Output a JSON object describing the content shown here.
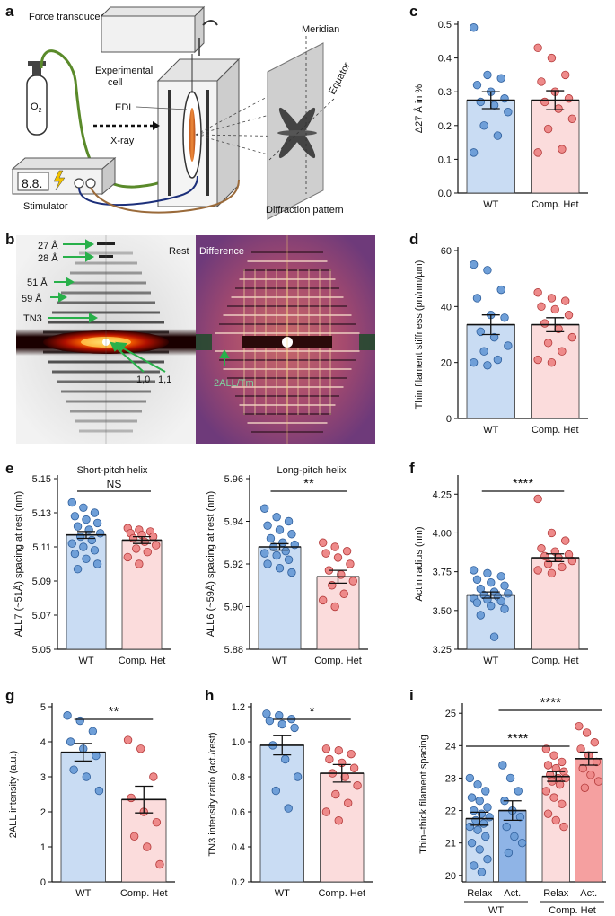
{
  "panels": {
    "a": {
      "label": "a",
      "force_transducer": "Force transducer",
      "experimental_cell_1": "Experimental",
      "experimental_cell_2": "cell",
      "o2": "O",
      "o2_sub": "2",
      "edl": "EDL",
      "xray": "X-ray",
      "stimulator": "Stimulator",
      "display_digits": "8.8.",
      "meridian": "Meridian",
      "equator": "Equator",
      "diffraction_pattern": "Diffraction pattern"
    },
    "b": {
      "label": "b",
      "rest": "Rest",
      "difference": "Difference",
      "reflections": [
        "27 Å",
        "28 Å",
        "51 Å",
        "59 Å",
        "TN3",
        "1,0",
        "1,1"
      ],
      "difference_marker": "2ALL/Tm"
    },
    "c": {
      "label": "c"
    },
    "d": {
      "label": "d"
    },
    "e": {
      "label": "e",
      "left_title": "Short-pitch helix",
      "right_title": "Long-pitch helix"
    },
    "f": {
      "label": "f"
    },
    "g": {
      "label": "g"
    },
    "h": {
      "label": "h"
    },
    "i": {
      "label": "i"
    }
  },
  "colors": {
    "wt_fill": "#c9dcf3",
    "wt_dot": "#6f9fd8",
    "wt_edge": "#2f5f9c",
    "het_fill": "#fbdcdc",
    "het_dot": "#ee8a8a",
    "het_edge": "#b33a3a",
    "act_wt_fill": "#8fb4e6",
    "act_het_fill": "#f5a0a0"
  },
  "chart_data": [
    {
      "id": "c",
      "type": "bar",
      "categories": [
        "WT",
        "Comp. Het"
      ],
      "values": [
        0.275,
        0.275
      ],
      "sem": [
        0.025,
        0.028
      ],
      "points": [
        [
          0.49,
          0.35,
          0.34,
          0.32,
          0.3,
          0.28,
          0.27,
          0.26,
          0.24,
          0.2,
          0.17,
          0.12
        ],
        [
          0.43,
          0.4,
          0.35,
          0.33,
          0.3,
          0.28,
          0.27,
          0.25,
          0.22,
          0.19,
          0.13,
          0.12
        ]
      ],
      "ylabel": "Δ27 Å in %",
      "ylim": [
        0,
        0.5
      ],
      "yticks": [
        0.0,
        0.1,
        0.2,
        0.3,
        0.4,
        0.5
      ],
      "tick_decimals": 1,
      "significance": []
    },
    {
      "id": "d",
      "type": "bar",
      "categories": [
        "WT",
        "Comp. Het"
      ],
      "values": [
        33.5,
        33.5
      ],
      "sem": [
        3.5,
        2.5
      ],
      "points": [
        [
          55,
          53,
          46,
          43,
          37,
          36,
          31,
          29,
          26,
          24,
          21,
          20,
          19
        ],
        [
          45,
          43,
          42,
          40,
          39,
          37,
          34,
          32,
          29,
          27,
          24,
          21,
          20
        ]
      ],
      "ylabel": "Thin filament stiffness (pn/nm/µm)",
      "ylim": [
        0,
        60
      ],
      "yticks": [
        0,
        20,
        40,
        60
      ],
      "tick_decimals": 0,
      "significance": []
    },
    {
      "id": "e1",
      "type": "bar",
      "categories": [
        "WT",
        "Comp. Het"
      ],
      "values": [
        5.117,
        5.114
      ],
      "sem": [
        0.002,
        0.002
      ],
      "points": [
        [
          5.136,
          5.133,
          5.13,
          5.128,
          5.126,
          5.124,
          5.122,
          5.12,
          5.118,
          5.116,
          5.114,
          5.112,
          5.11,
          5.108,
          5.106,
          5.103,
          5.1,
          5.097
        ],
        [
          5.121,
          5.12,
          5.119,
          5.118,
          5.117,
          5.116,
          5.115,
          5.113,
          5.111,
          5.109,
          5.107,
          5.104,
          5.1
        ]
      ],
      "ylabel": "ALL7 (~51Å) spacing at rest (nm)",
      "ylim": [
        5.05,
        5.15
      ],
      "yticks": [
        5.05,
        5.07,
        5.09,
        5.11,
        5.13,
        5.15
      ],
      "tick_decimals": 2,
      "significance": [
        {
          "text": "NS",
          "between": [
            0,
            1
          ]
        }
      ]
    },
    {
      "id": "e2",
      "type": "bar",
      "categories": [
        "WT",
        "Comp. Het"
      ],
      "values": [
        5.928,
        5.914
      ],
      "sem": [
        0.0015,
        0.003
      ],
      "points": [
        [
          5.946,
          5.942,
          5.94,
          5.938,
          5.936,
          5.934,
          5.932,
          5.93,
          5.929,
          5.928,
          5.926,
          5.925,
          5.924,
          5.922,
          5.92,
          5.918,
          5.916
        ],
        [
          5.93,
          5.928,
          5.926,
          5.925,
          5.923,
          5.92,
          5.917,
          5.915,
          5.912,
          5.91,
          5.906,
          5.903,
          5.9
        ]
      ],
      "ylabel": "ALL6 (~59Å) spacing at rest (nm)",
      "ylim": [
        5.88,
        5.96
      ],
      "yticks": [
        5.88,
        5.9,
        5.92,
        5.94,
        5.96
      ],
      "tick_decimals": 2,
      "significance": [
        {
          "text": "**",
          "between": [
            0,
            1
          ]
        }
      ]
    },
    {
      "id": "f",
      "type": "bar",
      "categories": [
        "WT",
        "Comp. Het"
      ],
      "values": [
        3.6,
        3.84
      ],
      "sem": [
        0.02,
        0.025
      ],
      "points": [
        [
          3.76,
          3.74,
          3.72,
          3.7,
          3.68,
          3.66,
          3.64,
          3.62,
          3.61,
          3.6,
          3.59,
          3.58,
          3.57,
          3.56,
          3.55,
          3.53,
          3.51,
          3.47,
          3.33
        ],
        [
          4.22,
          4.0,
          3.95,
          3.9,
          3.88,
          3.86,
          3.85,
          3.84,
          3.82,
          3.8,
          3.78,
          3.76,
          3.74
        ]
      ],
      "ylabel": "Actin radius (nm)",
      "ylim": [
        3.25,
        4.35
      ],
      "yticks": [
        3.25,
        3.5,
        3.75,
        4.0,
        4.25
      ],
      "tick_decimals": 2,
      "significance": [
        {
          "text": "****",
          "between": [
            0,
            1
          ]
        }
      ]
    },
    {
      "id": "g",
      "type": "bar",
      "categories": [
        "WT",
        "Comp. Het"
      ],
      "values": [
        3.7,
        2.35
      ],
      "sem": [
        0.25,
        0.38
      ],
      "points": [
        [
          4.75,
          4.6,
          4.3,
          4.0,
          3.8,
          3.6,
          3.2,
          3.0,
          2.6
        ],
        [
          4.05,
          3.8,
          3.0,
          2.4,
          2.0,
          1.7,
          1.3,
          1.0,
          0.5
        ]
      ],
      "ylabel": "2ALL intensity (a.u.)",
      "ylim": [
        0,
        5
      ],
      "yticks": [
        0,
        1,
        2,
        3,
        4,
        5
      ],
      "tick_decimals": 0,
      "significance": [
        {
          "text": "**",
          "between": [
            0,
            1
          ]
        }
      ]
    },
    {
      "id": "h",
      "type": "bar",
      "categories": [
        "WT",
        "Comp. Het"
      ],
      "values": [
        0.98,
        0.82
      ],
      "sem": [
        0.055,
        0.05
      ],
      "points": [
        [
          1.16,
          1.15,
          1.13,
          1.12,
          1.1,
          1.08,
          0.98,
          0.9,
          0.8,
          0.72,
          0.62
        ],
        [
          0.96,
          0.95,
          0.93,
          0.9,
          0.88,
          0.85,
          0.82,
          0.8,
          0.75,
          0.7,
          0.65,
          0.6,
          0.55
        ]
      ],
      "ylabel": "TN3 intensity ratio (act./rest)",
      "ylim": [
        0.2,
        1.2
      ],
      "yticks": [
        0.2,
        0.4,
        0.6,
        0.8,
        1.0,
        1.2
      ],
      "tick_decimals": 1,
      "significance": [
        {
          "text": "*",
          "between": [
            0,
            1
          ]
        }
      ]
    },
    {
      "id": "i",
      "type": "bar",
      "categories": [
        "Relax",
        "Act.",
        "Relax",
        "Act."
      ],
      "groups": [
        {
          "label": "WT",
          "span": [
            0,
            1
          ]
        },
        {
          "label": "Comp. Het",
          "span": [
            2,
            3
          ]
        }
      ],
      "values": [
        21.75,
        22.0,
        23.05,
        23.6
      ],
      "sem": [
        0.2,
        0.3,
        0.15,
        0.2
      ],
      "points": [
        [
          23.0,
          22.8,
          22.6,
          22.4,
          22.3,
          22.1,
          22.0,
          21.9,
          21.8,
          21.7,
          21.6,
          21.5,
          21.4,
          21.2,
          21.0,
          20.8,
          20.5,
          20.3,
          20.1
        ],
        [
          23.4,
          23.0,
          22.6,
          22.3,
          22.0,
          21.8,
          21.5,
          21.2,
          21.0,
          20.7
        ],
        [
          23.9,
          23.7,
          23.5,
          23.4,
          23.3,
          23.2,
          23.1,
          23.0,
          23.0,
          22.9,
          22.8,
          22.6,
          22.4,
          22.2,
          21.9,
          21.7,
          21.5
        ],
        [
          24.6,
          24.4,
          24.1,
          23.9,
          23.7,
          23.5,
          23.3,
          23.1,
          22.9,
          22.7
        ]
      ],
      "ylabel": "Thin–thick filament spacing",
      "ylim": [
        19.8,
        25.2
      ],
      "yticks": [
        20,
        21,
        22,
        23,
        24,
        25
      ],
      "tick_decimals": 0,
      "significance": [
        {
          "text": "****",
          "between": [
            0,
            2
          ],
          "level": 0
        },
        {
          "text": "****",
          "between": [
            1,
            3
          ],
          "level": 1
        }
      ]
    }
  ]
}
